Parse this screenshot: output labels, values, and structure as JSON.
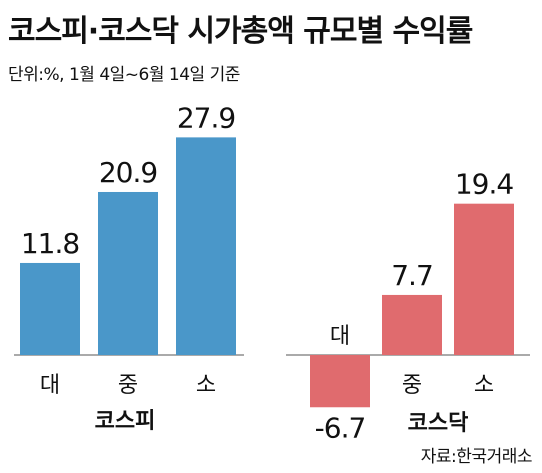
{
  "title": "코스피·코스닥 시가총액 규모별 수익률",
  "subtitle": "단위:%, 1월 4일~6월 14일 기준",
  "source": "자료:한국거래소",
  "chart_data": [
    {
      "type": "bar",
      "group_label": "코스피",
      "categories": [
        "대",
        "중",
        "소"
      ],
      "values": [
        11.8,
        20.9,
        27.9
      ],
      "value_labels": [
        "11.8",
        "20.9",
        "27.9"
      ],
      "color": "#4a97c9"
    },
    {
      "type": "bar",
      "group_label": "코스닥",
      "categories": [
        "대",
        "중",
        "소"
      ],
      "values": [
        -6.7,
        7.7,
        19.4
      ],
      "value_labels": [
        "-6.7",
        "7.7",
        "19.4"
      ],
      "color": "#e06b6e"
    }
  ]
}
